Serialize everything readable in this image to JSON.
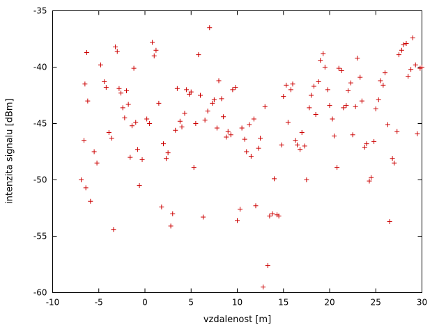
{
  "chart_data": {
    "type": "scatter",
    "title": "",
    "xlabel": "vzdalenost [m]",
    "ylabel": "intenzita signalu [dBm]",
    "xlim": [
      -10,
      30
    ],
    "ylim": [
      -60,
      -35
    ],
    "xticks": [
      -10,
      -5,
      0,
      5,
      10,
      15,
      20,
      25,
      30
    ],
    "yticks": [
      -60,
      -55,
      -50,
      -45,
      -40,
      -35
    ],
    "grid": false,
    "legend": "none",
    "marker": "plus",
    "marker_color": "#cc0000",
    "axis_color": "#000000",
    "points": [
      [
        -6.3,
        -38.7
      ],
      [
        -6.5,
        -41.5
      ],
      [
        -6.2,
        -43.0
      ],
      [
        -6.6,
        -46.5
      ],
      [
        -6.9,
        -50.0
      ],
      [
        -6.4,
        -50.7
      ],
      [
        -5.9,
        -51.9
      ],
      [
        -5.5,
        -47.5
      ],
      [
        -5.2,
        -48.5
      ],
      [
        -4.8,
        -39.8
      ],
      [
        -4.4,
        -41.3
      ],
      [
        -4.2,
        -41.8
      ],
      [
        -3.9,
        -45.8
      ],
      [
        -3.6,
        -46.3
      ],
      [
        -3.4,
        -54.4
      ],
      [
        -3.2,
        -38.2
      ],
      [
        -3.0,
        -38.6
      ],
      [
        -2.8,
        -41.9
      ],
      [
        -2.6,
        -42.3
      ],
      [
        -2.4,
        -43.6
      ],
      [
        -2.2,
        -44.5
      ],
      [
        -2.0,
        -42.1
      ],
      [
        -1.8,
        -43.3
      ],
      [
        -1.6,
        -48.0
      ],
      [
        -1.4,
        -45.2
      ],
      [
        -1.2,
        -40.1
      ],
      [
        -1.0,
        -44.9
      ],
      [
        -0.8,
        -47.3
      ],
      [
        -0.6,
        -50.5
      ],
      [
        -0.3,
        -48.2
      ],
      [
        0.2,
        -44.6
      ],
      [
        0.5,
        -45.0
      ],
      [
        0.8,
        -37.8
      ],
      [
        1.0,
        -39.0
      ],
      [
        1.2,
        -38.5
      ],
      [
        1.5,
        -43.2
      ],
      [
        1.8,
        -52.4
      ],
      [
        2.0,
        -46.8
      ],
      [
        2.3,
        -48.1
      ],
      [
        2.5,
        -47.6
      ],
      [
        2.8,
        -54.1
      ],
      [
        3.0,
        -53.0
      ],
      [
        3.3,
        -45.6
      ],
      [
        3.5,
        -41.9
      ],
      [
        3.8,
        -44.8
      ],
      [
        4.0,
        -45.3
      ],
      [
        4.3,
        -44.1
      ],
      [
        4.5,
        -42.0
      ],
      [
        4.8,
        -42.4
      ],
      [
        5.0,
        -42.2
      ],
      [
        5.3,
        -48.9
      ],
      [
        5.5,
        -45.0
      ],
      [
        5.8,
        -38.9
      ],
      [
        6.0,
        -42.5
      ],
      [
        6.3,
        -53.3
      ],
      [
        6.5,
        -44.7
      ],
      [
        6.8,
        -43.9
      ],
      [
        7.0,
        -36.5
      ],
      [
        7.3,
        -43.2
      ],
      [
        7.5,
        -42.9
      ],
      [
        7.8,
        -45.4
      ],
      [
        8.0,
        -41.2
      ],
      [
        8.3,
        -42.8
      ],
      [
        8.5,
        -44.4
      ],
      [
        8.8,
        -46.2
      ],
      [
        9.0,
        -45.7
      ],
      [
        9.3,
        -46.0
      ],
      [
        9.5,
        -42.0
      ],
      [
        9.8,
        -41.8
      ],
      [
        10.0,
        -53.6
      ],
      [
        10.3,
        -52.6
      ],
      [
        10.5,
        -45.4
      ],
      [
        10.8,
        -46.4
      ],
      [
        11.0,
        -47.5
      ],
      [
        11.3,
        -45.1
      ],
      [
        11.5,
        -47.9
      ],
      [
        11.8,
        -44.6
      ],
      [
        12.0,
        -52.3
      ],
      [
        12.3,
        -47.2
      ],
      [
        12.5,
        -46.3
      ],
      [
        12.8,
        -59.5
      ],
      [
        13.0,
        -43.5
      ],
      [
        13.3,
        -57.6
      ],
      [
        13.5,
        -53.2
      ],
      [
        13.8,
        -53.0
      ],
      [
        14.0,
        -49.9
      ],
      [
        14.3,
        -53.1
      ],
      [
        14.5,
        -53.2
      ],
      [
        14.8,
        -46.9
      ],
      [
        15.0,
        -42.6
      ],
      [
        15.3,
        -41.6
      ],
      [
        15.5,
        -44.9
      ],
      [
        15.8,
        -42.0
      ],
      [
        16.0,
        -41.5
      ],
      [
        16.3,
        -46.5
      ],
      [
        16.5,
        -46.9
      ],
      [
        16.8,
        -47.3
      ],
      [
        17.0,
        -45.8
      ],
      [
        17.3,
        -47.0
      ],
      [
        17.5,
        -50.0
      ],
      [
        17.8,
        -43.6
      ],
      [
        18.0,
        -42.5
      ],
      [
        18.3,
        -41.7
      ],
      [
        18.5,
        -44.2
      ],
      [
        18.8,
        -41.3
      ],
      [
        19.0,
        -39.4
      ],
      [
        19.3,
        -38.8
      ],
      [
        19.5,
        -40.0
      ],
      [
        19.8,
        -42.0
      ],
      [
        20.0,
        -43.4
      ],
      [
        20.3,
        -44.6
      ],
      [
        20.5,
        -46.1
      ],
      [
        20.8,
        -48.9
      ],
      [
        21.0,
        -40.1
      ],
      [
        21.3,
        -40.3
      ],
      [
        21.5,
        -43.6
      ],
      [
        21.8,
        -43.4
      ],
      [
        22.0,
        -42.1
      ],
      [
        22.3,
        -41.4
      ],
      [
        22.5,
        -46.0
      ],
      [
        22.8,
        -43.5
      ],
      [
        23.0,
        -39.2
      ],
      [
        23.3,
        -40.9
      ],
      [
        23.5,
        -43.0
      ],
      [
        23.8,
        -47.1
      ],
      [
        24.0,
        -46.8
      ],
      [
        24.3,
        -50.1
      ],
      [
        24.5,
        -49.8
      ],
      [
        24.8,
        -46.6
      ],
      [
        25.0,
        -43.7
      ],
      [
        25.3,
        -42.9
      ],
      [
        25.5,
        -41.2
      ],
      [
        25.8,
        -41.6
      ],
      [
        26.0,
        -40.5
      ],
      [
        26.3,
        -45.1
      ],
      [
        26.5,
        -53.7
      ],
      [
        26.8,
        -48.1
      ],
      [
        27.0,
        -48.5
      ],
      [
        27.3,
        -45.7
      ],
      [
        27.5,
        -38.9
      ],
      [
        27.8,
        -38.5
      ],
      [
        28.0,
        -38.0
      ],
      [
        28.3,
        -37.9
      ],
      [
        28.5,
        -40.8
      ],
      [
        28.8,
        -40.2
      ],
      [
        29.0,
        -37.4
      ],
      [
        29.3,
        -39.8
      ],
      [
        29.5,
        -45.9
      ],
      [
        29.8,
        -40.1
      ],
      [
        30.0,
        -40.0
      ]
    ]
  }
}
